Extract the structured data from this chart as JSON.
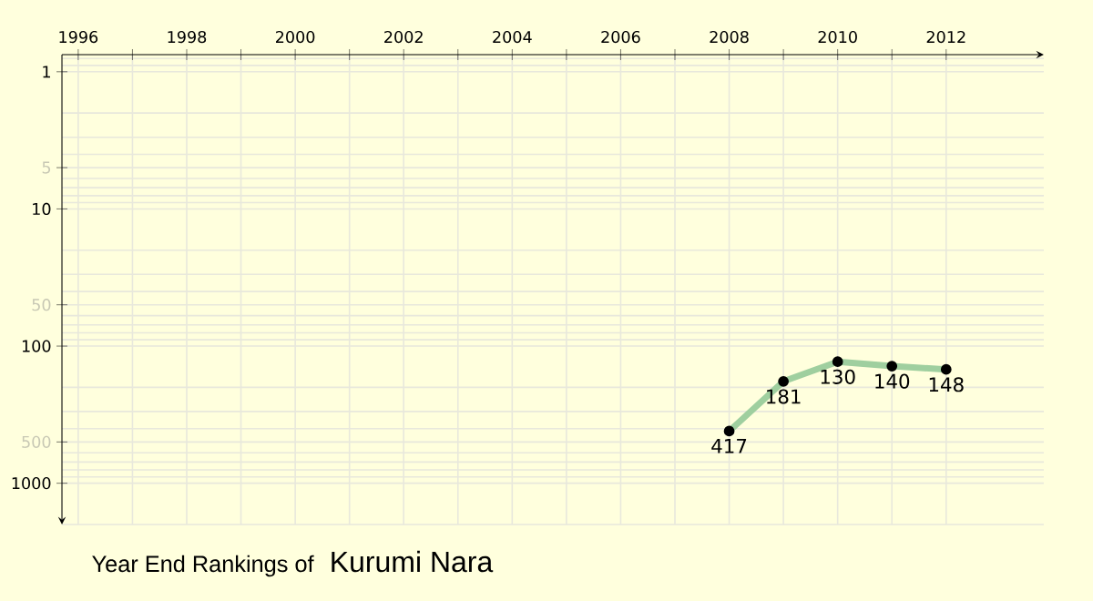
{
  "chart_data": {
    "type": "line",
    "title": "Year End Rankings of",
    "subtitle": "Kurumi Nara",
    "x": [
      2008,
      2009,
      2010,
      2011,
      2012
    ],
    "series": [
      {
        "color": "#9fcf9f",
        "values": [
          417,
          181,
          130,
          140,
          148
        ]
      }
    ],
    "xlim": [
      1995.7,
      2013.8
    ],
    "ylim": [
      2000,
      0.75
    ],
    "log": "y",
    "xticks": [
      1996,
      {
        "value": 1997,
        "label": null
      },
      1998,
      {
        "value": 1999,
        "label": null
      },
      2000,
      {
        "value": 2001,
        "label": null
      },
      2002,
      {
        "value": 2003,
        "label": null
      },
      2004,
      {
        "value": 2005,
        "label": null
      },
      2006,
      {
        "value": 2007,
        "label": null
      },
      2008,
      {
        "value": 2009,
        "label": null
      },
      2010,
      {
        "value": 2011,
        "label": null
      },
      2012
    ],
    "yticks": [
      1,
      5,
      10,
      50,
      100,
      500,
      1000
    ],
    "grid": true,
    "marker": "circle",
    "line_style": "solid",
    "data_labels": true
  }
}
